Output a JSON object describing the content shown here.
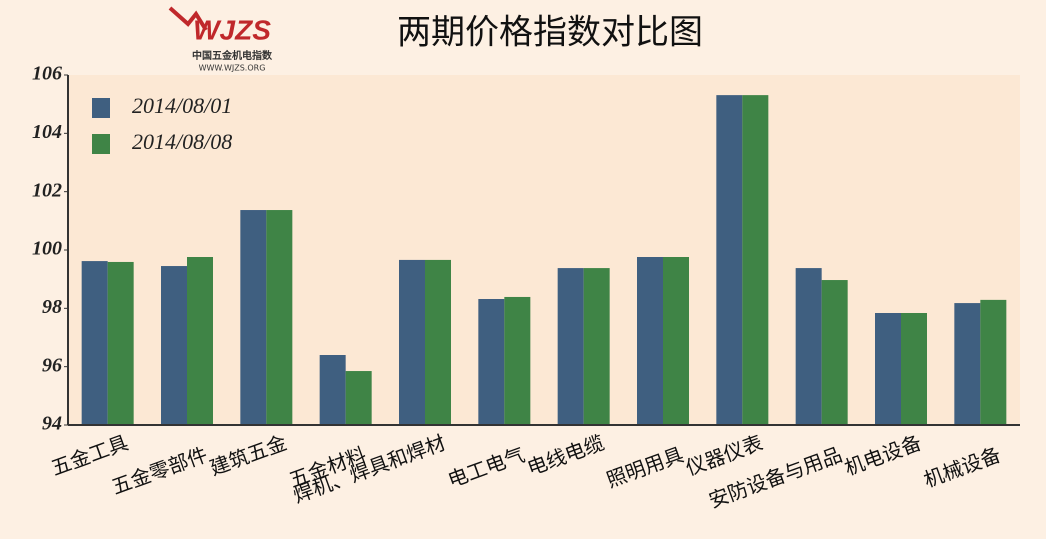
{
  "logo": {
    "mark": "WJZS",
    "name": "中国五金机电指数",
    "url": "WWW.WJZS.ORG"
  },
  "chart_data": {
    "type": "bar",
    "title": "两期价格指数对比图",
    "categories": [
      "五金工具",
      "五金零部件",
      "建筑五金",
      "五金材料",
      "焊机、焊具和焊材",
      "电工电气",
      "电线电缆",
      "照明用具",
      "仪器仪表",
      "安防设备与用品",
      "机电设备",
      "机械设备"
    ],
    "series": [
      {
        "name": "2014/08/01",
        "color": "#3f5f80",
        "values": [
          99.62,
          99.45,
          101.37,
          96.4,
          99.66,
          98.32,
          99.38,
          99.76,
          105.31,
          99.38,
          97.84,
          98.18
        ]
      },
      {
        "name": "2014/08/08",
        "color": "#3f8446",
        "values": [
          99.59,
          99.76,
          101.37,
          95.85,
          99.66,
          98.39,
          99.38,
          99.76,
          105.31,
          98.97,
          97.84,
          98.29
        ]
      }
    ],
    "ylim": [
      94,
      106
    ],
    "yticks": [
      94,
      96,
      98,
      100,
      102,
      104,
      106
    ],
    "legend": "upper-left"
  }
}
